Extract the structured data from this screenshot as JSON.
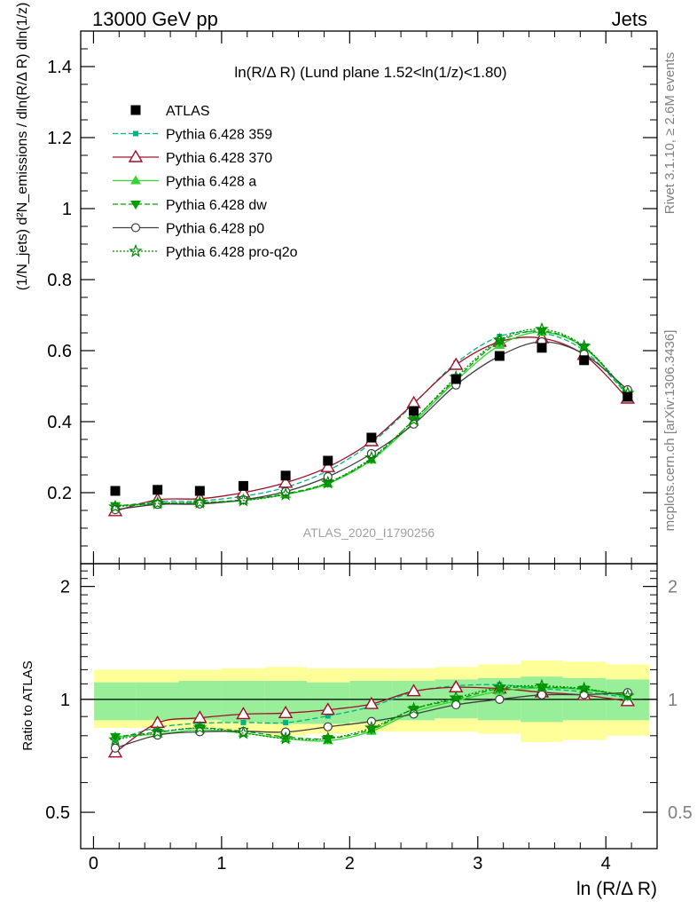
{
  "header": {
    "left": "13000 GeV pp",
    "right": "Jets"
  },
  "side_labels": {
    "rivet": "Rivet 3.1.10, ≥ 2.6M events",
    "mcplots": "mcplots.cern.ch [arXiv:1306.3436]"
  },
  "chart_data": {
    "type": "line",
    "title": "ln(R/Δ R) (Lund plane 1.52<ln(1/z)<1.80)",
    "analysis_label": "ATLAS_2020_I1790256",
    "xlabel": "ln (R/Δ R)",
    "ylabel_main": "(1/N_jets) d²N_emissions / dln(R/Δ R) dln(1/z)",
    "ylabel_ratio": "Ratio to ATLAS",
    "xlim": [
      -0.1,
      4.4
    ],
    "ylim_main": [
      0,
      1.5
    ],
    "ylim_ratio": [
      0.4,
      2.3
    ],
    "ratio_log_scale": true,
    "legend_position": "top-left",
    "x_ticks": [
      "0",
      "1",
      "2",
      "3",
      "4"
    ],
    "y_ticks_main": [
      "0.2",
      "0.4",
      "0.6",
      "0.8",
      "1",
      "1.2",
      "1.4"
    ],
    "y_ticks_ratio": [
      "0.5",
      "1",
      "2"
    ],
    "x": [
      0.17,
      0.5,
      0.83,
      1.17,
      1.5,
      1.83,
      2.17,
      2.5,
      2.83,
      3.17,
      3.5,
      3.83,
      4.17
    ],
    "data": {
      "name": "ATLAS",
      "values": [
        0.205,
        0.208,
        0.205,
        0.219,
        0.248,
        0.29,
        0.355,
        0.43,
        0.52,
        0.585,
        0.608,
        0.573,
        0.47
      ]
    },
    "bands": {
      "inner": [
        [
          0.88,
          1.11
        ],
        [
          0.88,
          1.11
        ],
        [
          0.88,
          1.12
        ],
        [
          0.87,
          1.12
        ],
        [
          0.86,
          1.12
        ],
        [
          0.86,
          1.11
        ],
        [
          0.87,
          1.12
        ],
        [
          0.88,
          1.12
        ],
        [
          0.89,
          1.13
        ],
        [
          0.88,
          1.14
        ],
        [
          0.87,
          1.15
        ],
        [
          0.88,
          1.14
        ],
        [
          0.88,
          1.13
        ]
      ],
      "outer": [
        [
          0.84,
          1.2
        ],
        [
          0.84,
          1.2
        ],
        [
          0.84,
          1.2
        ],
        [
          0.82,
          1.21
        ],
        [
          0.8,
          1.22
        ],
        [
          0.81,
          1.21
        ],
        [
          0.82,
          1.21
        ],
        [
          0.82,
          1.21
        ],
        [
          0.82,
          1.22
        ],
        [
          0.81,
          1.24
        ],
        [
          0.77,
          1.27
        ],
        [
          0.78,
          1.26
        ],
        [
          0.8,
          1.24
        ]
      ]
    },
    "series": [
      {
        "name": "Pythia 6.428 359",
        "color": "#00b383",
        "dash": "dashed",
        "marker": "small-square",
        "values": [
          0.16,
          0.175,
          0.177,
          0.19,
          0.215,
          0.262,
          0.34,
          0.45,
          0.565,
          0.64,
          0.65,
          0.6,
          0.475
        ]
      },
      {
        "name": "Pythia 6.428 370",
        "color": "#a0102a",
        "dash": "solid",
        "marker": "open-triangle",
        "values": [
          0.148,
          0.18,
          0.183,
          0.2,
          0.228,
          0.272,
          0.345,
          0.452,
          0.56,
          0.625,
          0.635,
          0.588,
          0.465
        ]
      },
      {
        "name": "Pythia 6.428 a",
        "color": "#33d633",
        "dash": "solid",
        "marker": "filled-triangle",
        "values": [
          0.163,
          0.168,
          0.17,
          0.178,
          0.195,
          0.225,
          0.292,
          0.398,
          0.515,
          0.615,
          0.652,
          0.608,
          0.478
        ]
      },
      {
        "name": "Pythia 6.428 dw",
        "color": "#00a000",
        "dash": "dashed",
        "marker": "filled-triangle-down",
        "values": [
          0.163,
          0.17,
          0.172,
          0.18,
          0.197,
          0.228,
          0.295,
          0.405,
          0.52,
          0.625,
          0.655,
          0.61,
          0.48
        ]
      },
      {
        "name": "Pythia 6.428 p0",
        "color": "#404040",
        "dash": "solid",
        "marker": "open-circle",
        "values": [
          0.152,
          0.167,
          0.168,
          0.18,
          0.203,
          0.245,
          0.31,
          0.393,
          0.503,
          0.585,
          0.625,
          0.59,
          0.49
        ]
      },
      {
        "name": "Pythia 6.428 pro-q2o",
        "color": "#008a00",
        "dash": "dotted",
        "marker": "star",
        "values": [
          0.16,
          0.17,
          0.172,
          0.178,
          0.195,
          0.228,
          0.298,
          0.405,
          0.525,
          0.63,
          0.66,
          0.612,
          0.48
        ]
      }
    ]
  }
}
